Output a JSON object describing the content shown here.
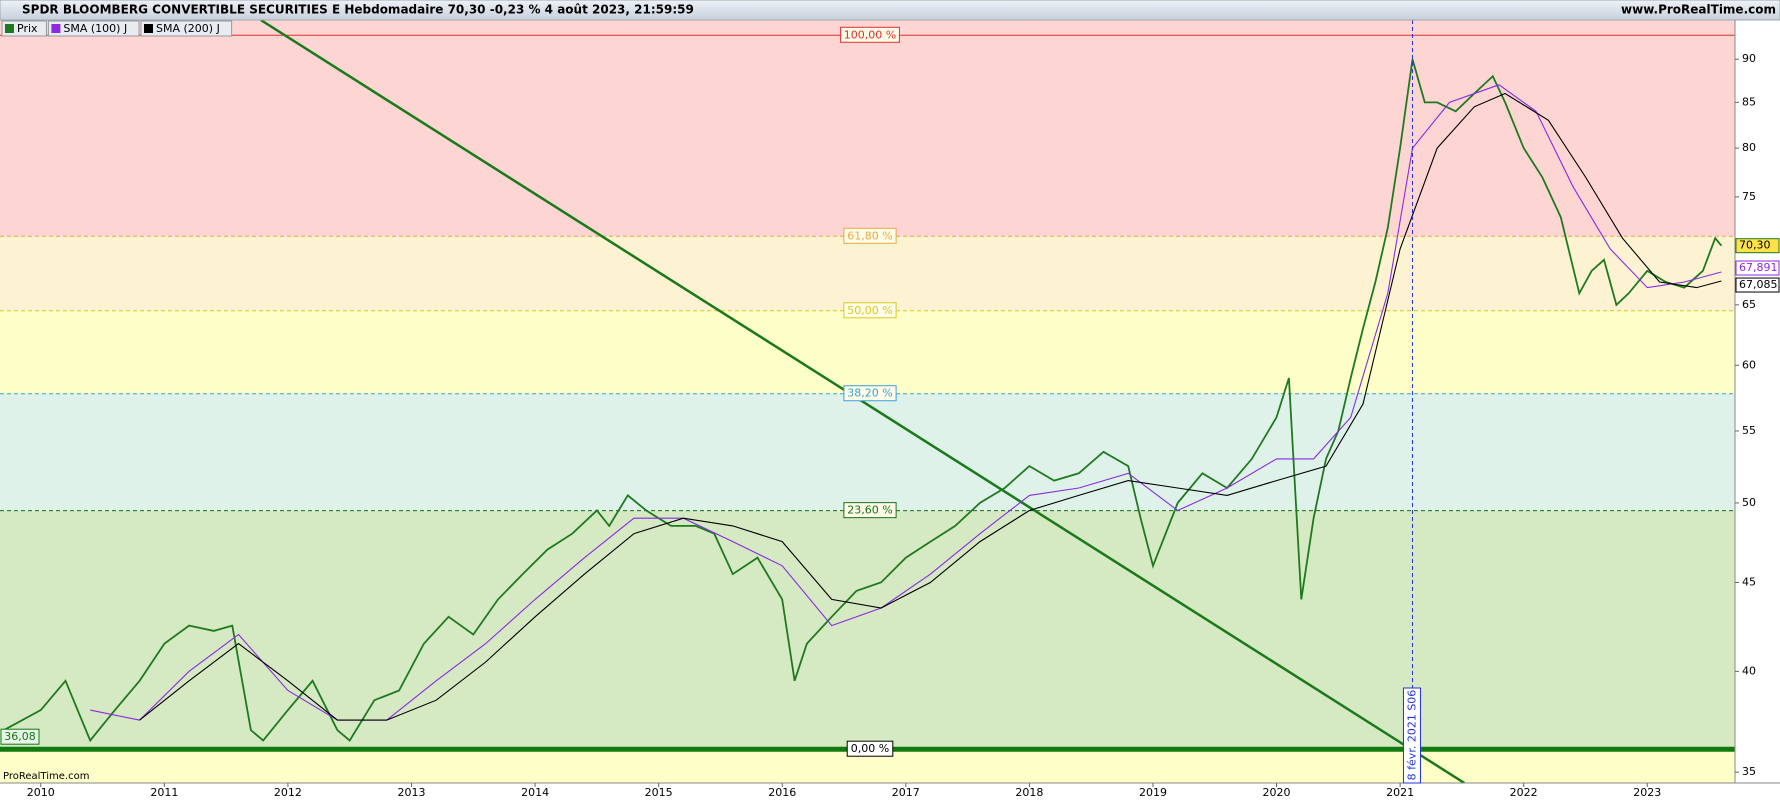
{
  "chart_data": {
    "type": "line",
    "title": "SPDR BLOOMBERG CONVERTIBLE SECURITIES E Hebdomadaire 70,30 -0,23 % 4 août 2023, 21:59:59",
    "source": "www.ProRealTime.com",
    "watermark": "ProRealTime.com",
    "log_scale": true,
    "xlim": [
      2009.67,
      2023.71
    ],
    "xticks": [
      2010,
      2011,
      2012,
      2013,
      2014,
      2015,
      2016,
      2017,
      2018,
      2019,
      2020,
      2021,
      2022,
      2023
    ],
    "ylim": [
      34.5,
      94.8
    ],
    "yticks": [
      35,
      40,
      45,
      50,
      55,
      60,
      65,
      70,
      75,
      80,
      85,
      90
    ],
    "below_fill": "#fefec8",
    "levels": [
      {
        "price": 36.08,
        "label": "0,00 %",
        "price_label": "36,08",
        "color": "#117a11",
        "fill": "#d5e9c2"
      },
      {
        "price": 49.49,
        "label": "23,60 %",
        "color": "#1a6e1a",
        "fill": "#dff2ea"
      },
      {
        "price": 57.78,
        "label": "38,20 %",
        "color": "#3aa0d8",
        "fill": "#fefec8"
      },
      {
        "price": 64.49,
        "label": "50,00 %",
        "color": "#d8c820",
        "fill": "#fdf2d2"
      },
      {
        "price": 71.18,
        "label": "61,80 %",
        "color": "#e8a848",
        "fill": "#fdd5d3"
      },
      {
        "price": 92.9,
        "label": "100,00 %",
        "color": "#e03030",
        "fill": "#fdd5d3"
      }
    ],
    "trendline": {
      "x": [
        2011.78,
        2021.52
      ],
      "y": [
        94.8,
        34.5
      ],
      "color": "#1a7a1a"
    },
    "vline": {
      "x": 2021.1,
      "label": "8 févr. 2021 S06",
      "color": "#2233dd"
    },
    "series": [
      {
        "name": "Prix",
        "color": "#1f7a1f",
        "last_label": "70,30",
        "x": [
          2009.7,
          2010.0,
          2010.2,
          2010.4,
          2010.6,
          2010.8,
          2011.0,
          2011.2,
          2011.4,
          2011.55,
          2011.7,
          2011.8,
          2012.0,
          2012.2,
          2012.4,
          2012.5,
          2012.7,
          2012.9,
          2013.1,
          2013.3,
          2013.5,
          2013.7,
          2013.9,
          2014.1,
          2014.3,
          2014.5,
          2014.6,
          2014.75,
          2014.9,
          2015.1,
          2015.3,
          2015.45,
          2015.6,
          2015.8,
          2016.0,
          2016.1,
          2016.2,
          2016.4,
          2016.6,
          2016.8,
          2017.0,
          2017.2,
          2017.4,
          2017.6,
          2017.8,
          2018.0,
          2018.2,
          2018.4,
          2018.6,
          2018.8,
          2018.9,
          2019.0,
          2019.2,
          2019.4,
          2019.6,
          2019.8,
          2020.0,
          2020.1,
          2020.2,
          2020.3,
          2020.4,
          2020.5,
          2020.6,
          2020.7,
          2020.8,
          2020.9,
          2021.0,
          2021.1,
          2021.2,
          2021.3,
          2021.45,
          2021.6,
          2021.75,
          2021.85,
          2022.0,
          2022.15,
          2022.3,
          2022.45,
          2022.55,
          2022.65,
          2022.75,
          2022.85,
          2023.0,
          2023.15,
          2023.3,
          2023.45,
          2023.55,
          2023.6
        ],
        "values": [
          37,
          38,
          39.5,
          36.5,
          38,
          39.5,
          41.5,
          42.5,
          42.2,
          42.5,
          37,
          36.5,
          38,
          39.5,
          37,
          36.5,
          38.5,
          39,
          41.5,
          43,
          42,
          44,
          45.5,
          47,
          48,
          49.5,
          48.5,
          50.5,
          49.5,
          48.5,
          48.5,
          48,
          45.5,
          46.5,
          44,
          39.5,
          41.5,
          43,
          44.5,
          45,
          46.5,
          47.5,
          48.5,
          50,
          51,
          52.5,
          51.5,
          52,
          53.5,
          52.5,
          49,
          46,
          50,
          52,
          51,
          53,
          56,
          59,
          44,
          49,
          53,
          55,
          59,
          63,
          67,
          72,
          80,
          90,
          85,
          85,
          84,
          86,
          88,
          85,
          80,
          77,
          73,
          66,
          68,
          69,
          65,
          66,
          68,
          67,
          66.5,
          68,
          71,
          70.3
        ]
      },
      {
        "name": "SMA (100) J",
        "color": "#8a2be2",
        "last_label": "67,891",
        "x": [
          2010.4,
          2010.8,
          2011.2,
          2011.6,
          2012.0,
          2012.4,
          2012.8,
          2013.2,
          2013.6,
          2014.0,
          2014.4,
          2014.8,
          2015.2,
          2015.6,
          2016.0,
          2016.4,
          2016.8,
          2017.2,
          2017.6,
          2018.0,
          2018.4,
          2018.8,
          2019.2,
          2019.6,
          2020.0,
          2020.3,
          2020.6,
          2020.9,
          2021.1,
          2021.4,
          2021.8,
          2022.1,
          2022.4,
          2022.7,
          2023.0,
          2023.3,
          2023.6
        ],
        "values": [
          38,
          37.5,
          40,
          42,
          39,
          37.5,
          37.5,
          39.5,
          41.5,
          44,
          46.5,
          49,
          49,
          47.5,
          46,
          42.5,
          43.5,
          45.5,
          48,
          50.5,
          51,
          52,
          49.5,
          51,
          53,
          53,
          56,
          66,
          80,
          85,
          87,
          84,
          76,
          70,
          66.5,
          67,
          67.891
        ]
      },
      {
        "name": "SMA (200) J",
        "color": "#000000",
        "last_label": "67,085",
        "x": [
          2010.8,
          2011.2,
          2011.6,
          2012.0,
          2012.4,
          2012.8,
          2013.2,
          2013.6,
          2014.0,
          2014.4,
          2014.8,
          2015.2,
          2015.6,
          2016.0,
          2016.4,
          2016.8,
          2017.2,
          2017.6,
          2018.0,
          2018.4,
          2018.8,
          2019.2,
          2019.6,
          2020.0,
          2020.4,
          2020.7,
          2021.0,
          2021.3,
          2021.6,
          2021.85,
          2022.2,
          2022.5,
          2022.8,
          2023.1,
          2023.4,
          2023.6
        ],
        "values": [
          37.5,
          39.5,
          41.5,
          39.5,
          37.5,
          37.5,
          38.5,
          40.5,
          43,
          45.5,
          48,
          49,
          48.5,
          47.5,
          44,
          43.5,
          45,
          47.5,
          49.5,
          50.5,
          51.5,
          51,
          50.5,
          51.5,
          52.5,
          57,
          70,
          80,
          84.5,
          86,
          83,
          77,
          71,
          67,
          66.5,
          67.085
        ]
      }
    ]
  }
}
